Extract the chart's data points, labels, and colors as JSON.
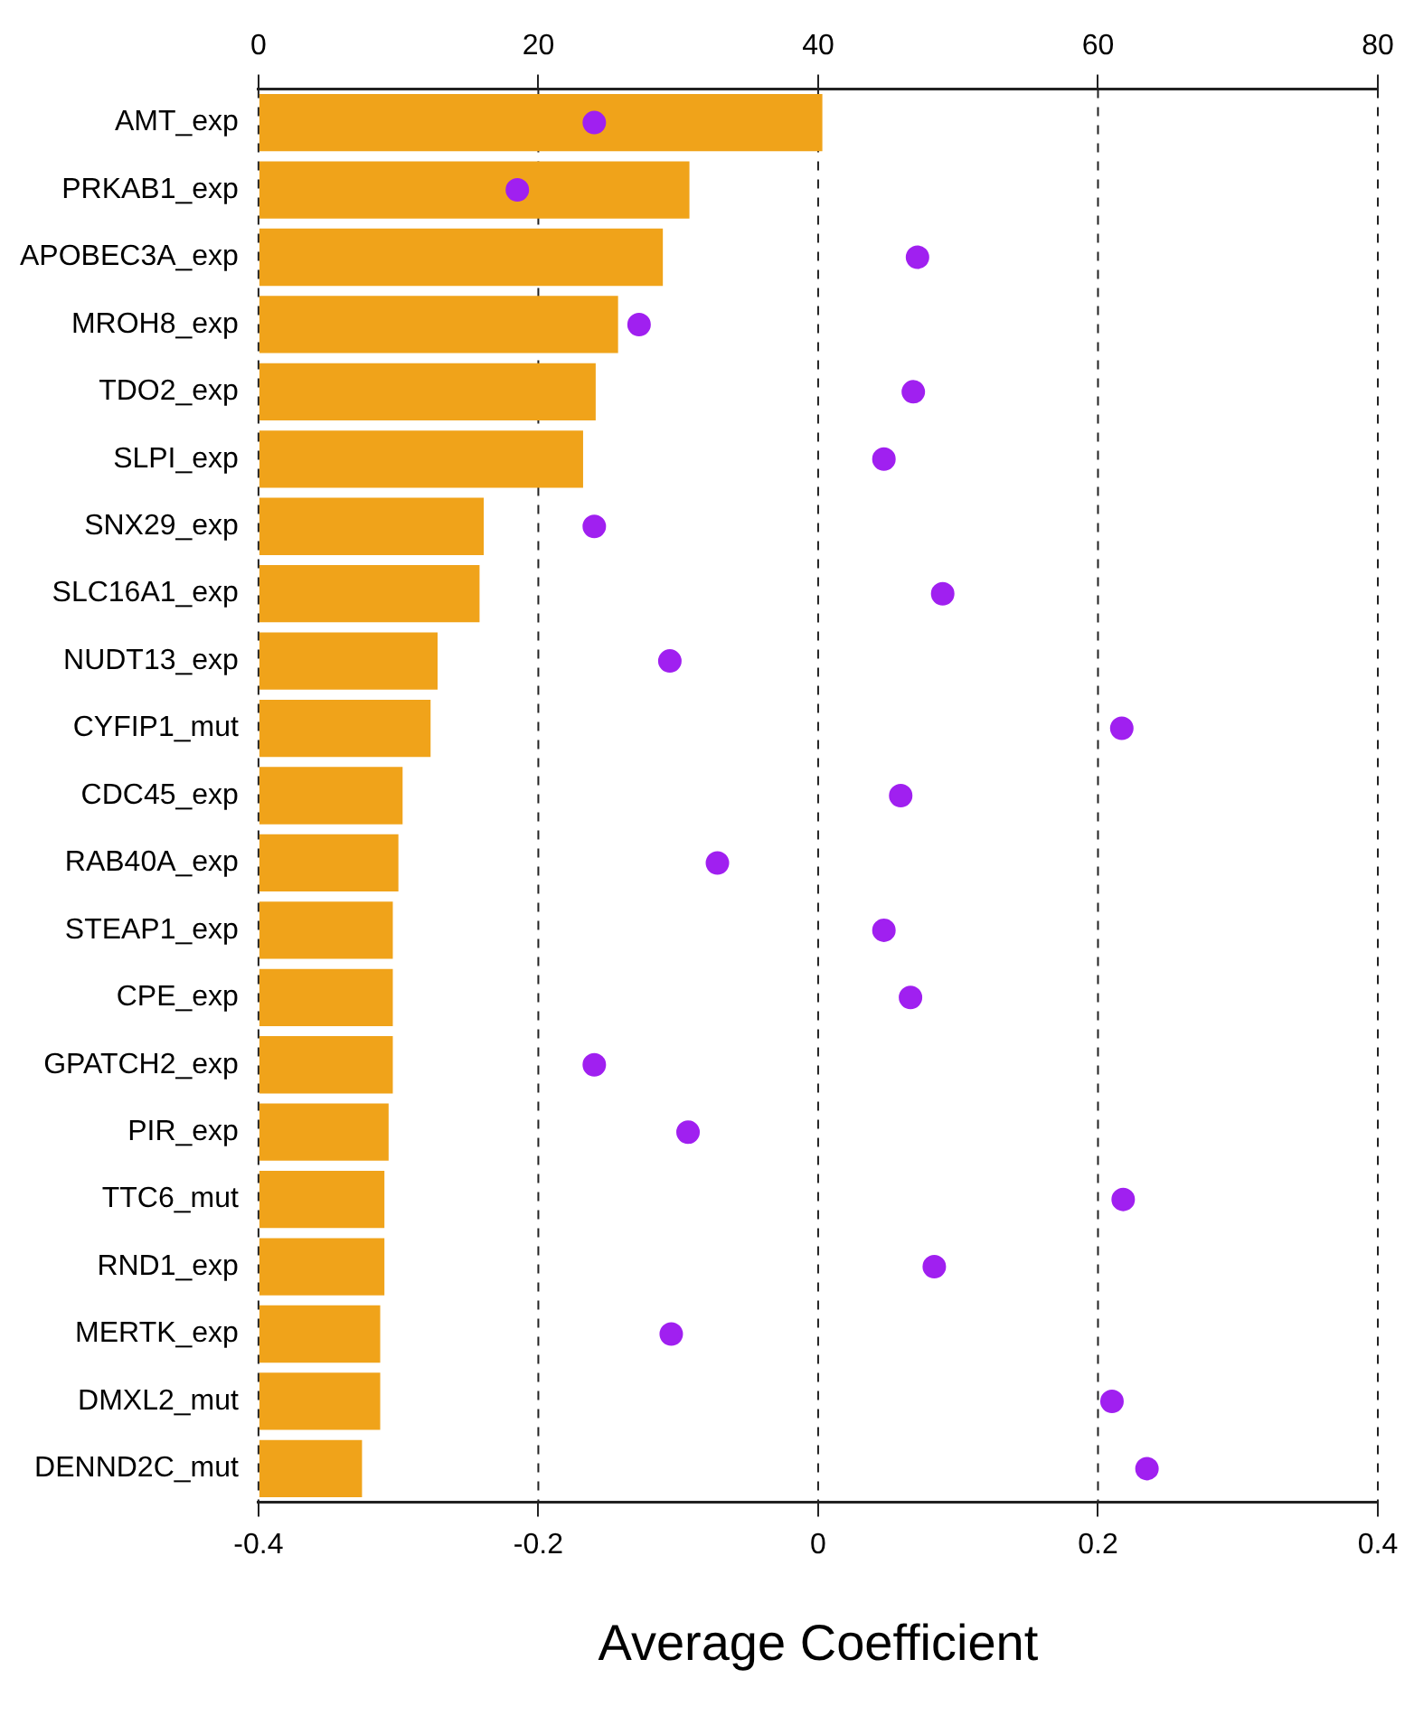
{
  "chart_data": {
    "type": "bar",
    "orientation": "horizontal",
    "xlabel": "Average Coefficient",
    "categories": [
      "AMT_exp",
      "PRKAB1_exp",
      "APOBEC3A_exp",
      "MROH8_exp",
      "TDO2_exp",
      "SLPI_exp",
      "SNX29_exp",
      "SLC16A1_exp",
      "NUDT13_exp",
      "CYFIP1_mut",
      "CDC45_exp",
      "RAB40A_exp",
      "STEAP1_exp",
      "CPE_exp",
      "GPATCH2_exp",
      "PIR_exp",
      "TTC6_mut",
      "RND1_exp",
      "MERTK_exp",
      "DMXL2_mut",
      "DENND2C_mut"
    ],
    "series": [
      {
        "axis": "x2",
        "color": "#f0a31a",
        "values": [
          40.3,
          30.8,
          28.9,
          25.7,
          24.1,
          23.2,
          16.1,
          15.8,
          12.8,
          12.3,
          10.3,
          10.0,
          9.6,
          9.6,
          9.6,
          9.3,
          9.0,
          9.0,
          8.7,
          8.7,
          7.4
        ]
      },
      {
        "type": "scatter",
        "color": "#a020f0",
        "values": [
          -0.16,
          -0.215,
          0.071,
          -0.128,
          0.068,
          0.047,
          -0.16,
          0.089,
          -0.106,
          0.217,
          0.059,
          -0.072,
          0.047,
          0.066,
          -0.16,
          -0.093,
          0.218,
          0.083,
          -0.105,
          0.21,
          0.235
        ]
      }
    ],
    "xlim": [
      -0.4,
      0.4
    ],
    "xticks": [
      -0.4,
      -0.2,
      0,
      0.2,
      0.4
    ],
    "x2lim": [
      0,
      80
    ],
    "x2ticks": [
      0,
      20,
      40,
      60,
      80
    ],
    "grid": "x",
    "marker": "circle",
    "legend": false
  }
}
